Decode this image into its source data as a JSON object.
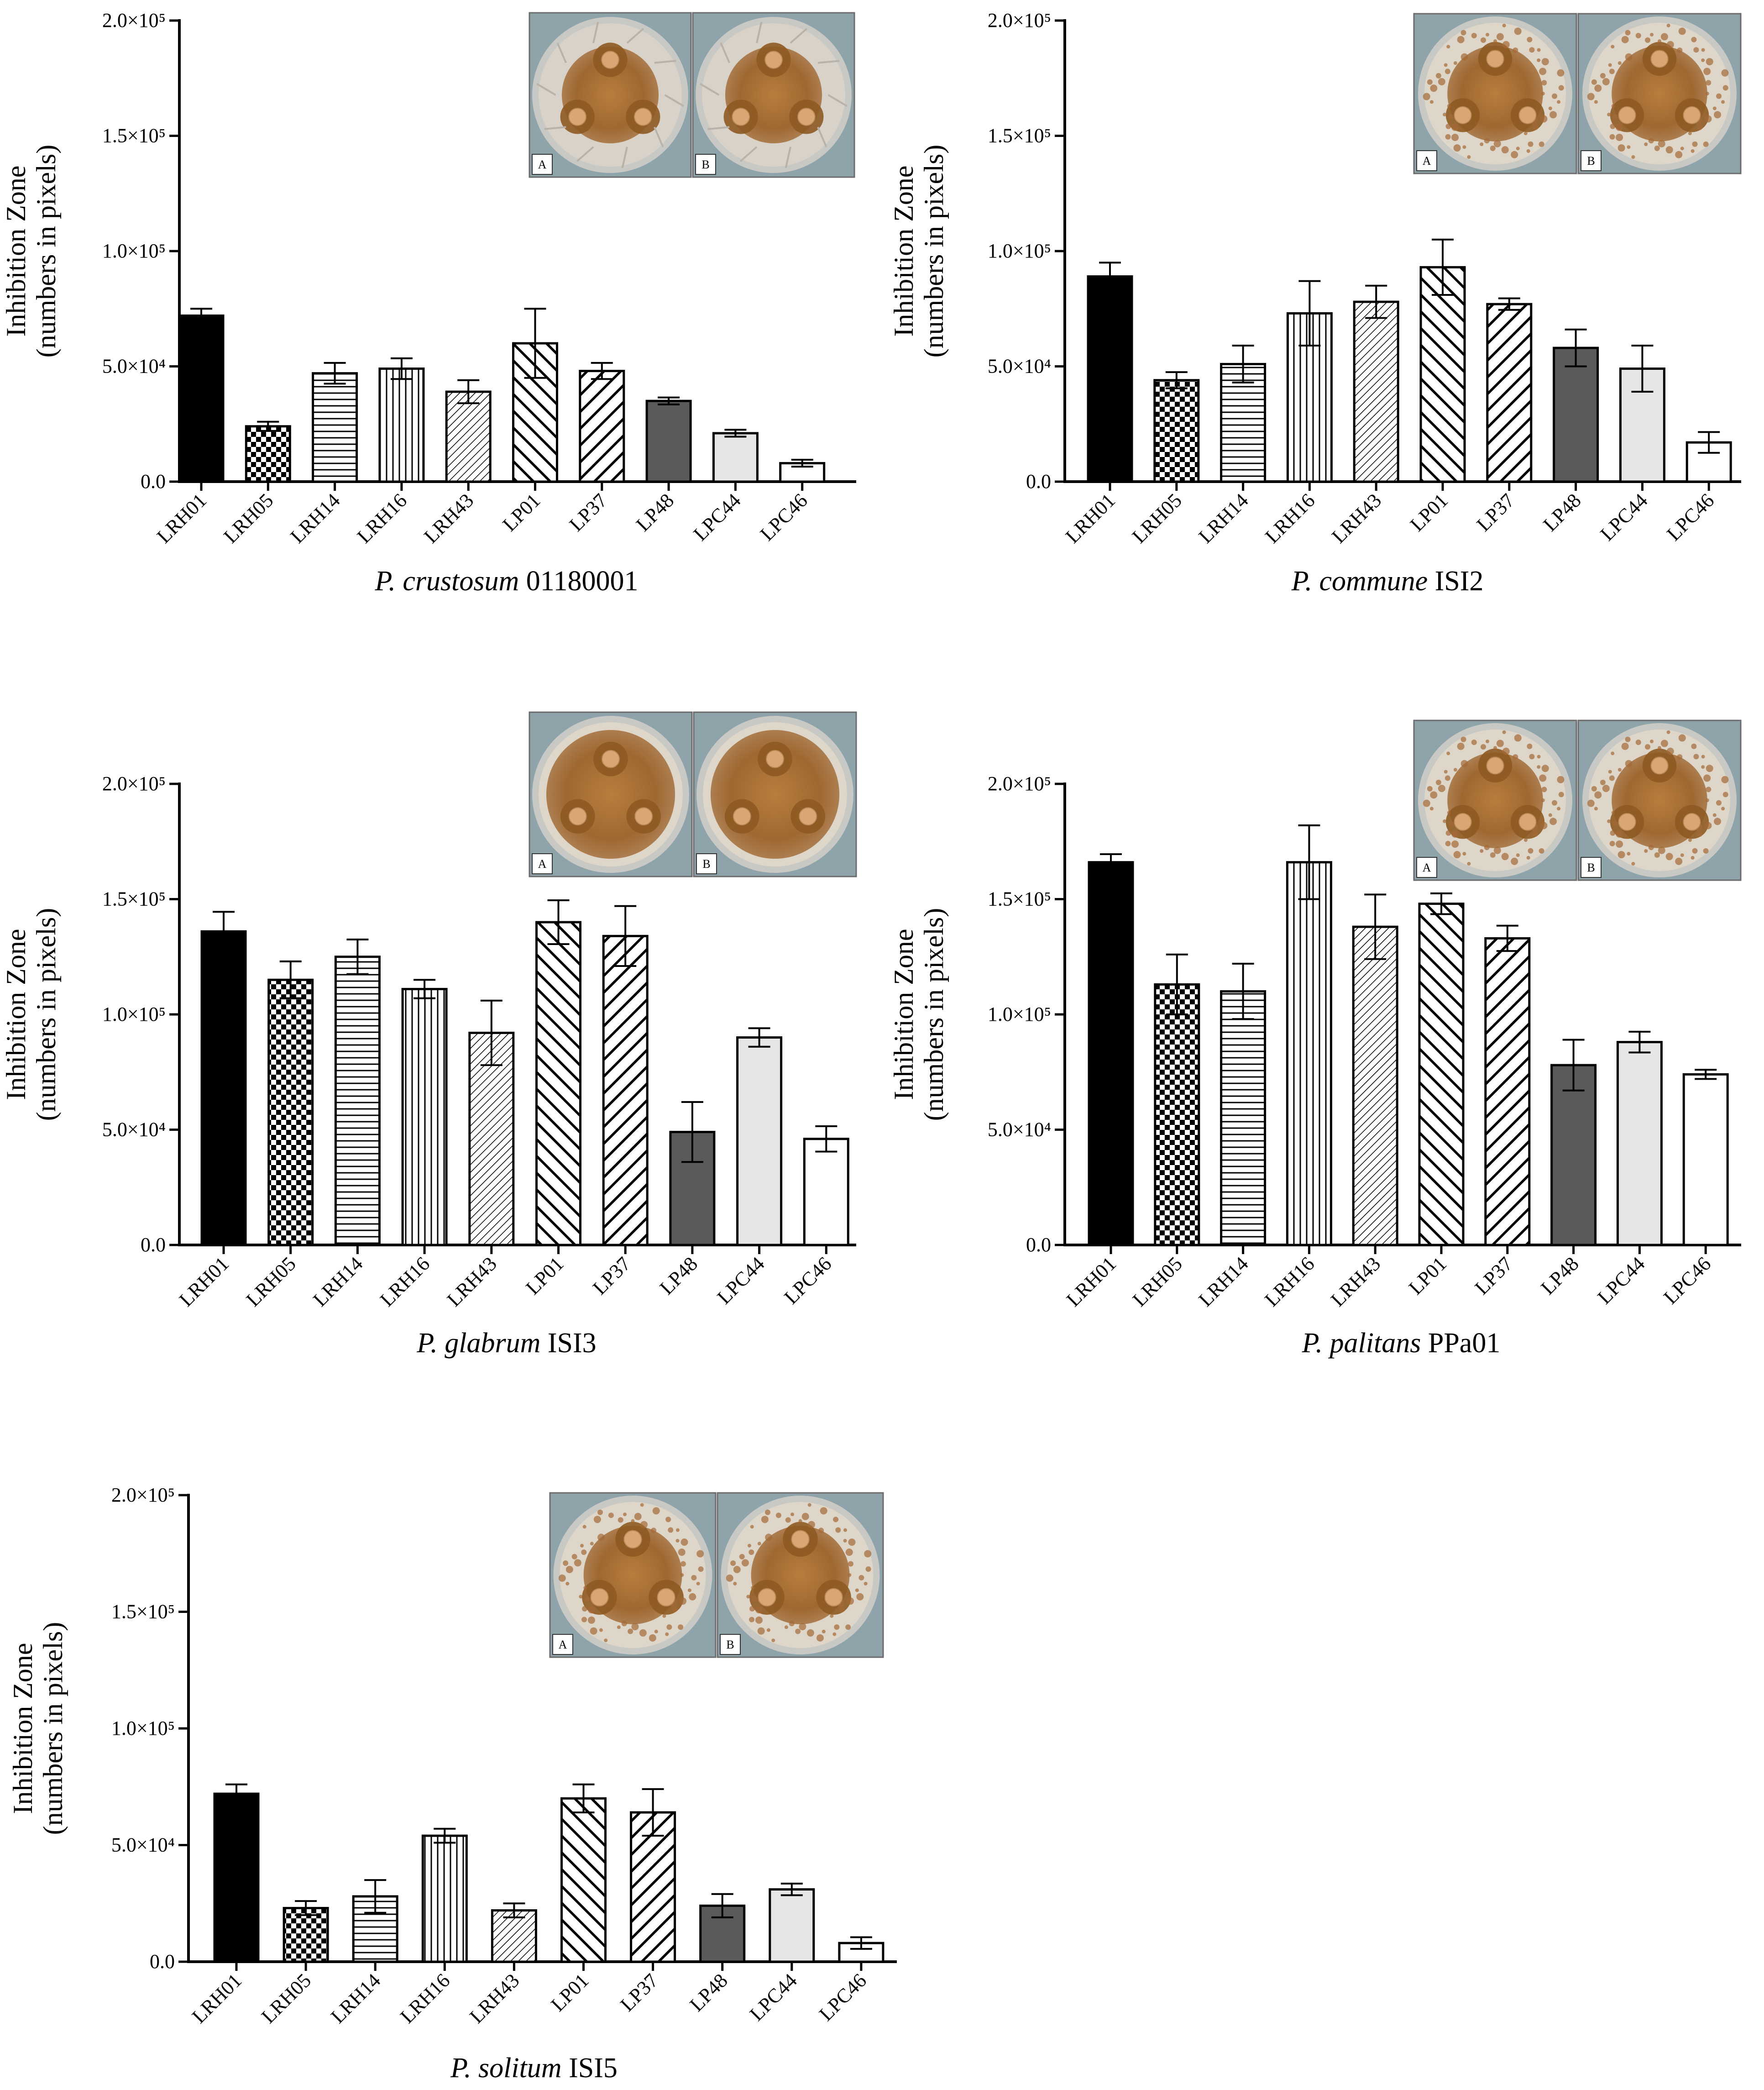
{
  "figure": {
    "background": "#ffffff"
  },
  "styles": {
    "LRH01": {
      "pattern": "solid",
      "color": "#000000"
    },
    "LRH05": {
      "pattern": "checker",
      "color": "#000000"
    },
    "LRH14": {
      "pattern": "hlines",
      "color": "#000000"
    },
    "LRH16": {
      "pattern": "vlines",
      "color": "#000000"
    },
    "LRH43": {
      "pattern": "diag-fine",
      "color": "#000000"
    },
    "LP01": {
      "pattern": "diag-back",
      "color": "#000000"
    },
    "LP37": {
      "pattern": "diag-fwd",
      "color": "#000000"
    },
    "LP48": {
      "pattern": "solid",
      "color": "#5a5a5a"
    },
    "LPC44": {
      "pattern": "solid",
      "color": "#e6e6e6"
    },
    "LPC46": {
      "pattern": "solid",
      "color": "#ffffff"
    }
  },
  "photo_colors": {
    "plate": "#a86a2c",
    "rim": "#c8c8c4",
    "background": "#8fa3ab",
    "disc": "#d9a774"
  },
  "chart_data": [
    {
      "type": "bar",
      "title": "",
      "subtitle_italic": "P. crustosum",
      "subtitle_rest": " 01180001",
      "ylabel_line1": "Inhibition Zone",
      "ylabel_line2": "(numbers in pixels)",
      "ylim": [
        0,
        200000
      ],
      "yticks": [
        {
          "label": "0.0",
          "value": 0
        },
        {
          "label": "5.0×10⁴",
          "value": 50000
        },
        {
          "label": "1.0×10⁵",
          "value": 100000
        },
        {
          "label": "1.5×10⁵",
          "value": 150000
        },
        {
          "label": "2.0×10⁵",
          "value": 200000
        }
      ],
      "categories": [
        "LRH01",
        "LRH05",
        "LRH14",
        "LRH16",
        "LRH43",
        "LP01",
        "LP37",
        "LP48",
        "LPC44",
        "LPC46"
      ],
      "values": [
        72000,
        24000,
        47000,
        49000,
        39000,
        60000,
        48000,
        35000,
        21000,
        8000
      ],
      "errors": [
        3000,
        2000,
        4500,
        4500,
        5000,
        15000,
        3500,
        1500,
        1500,
        1500
      ],
      "photos": [
        {
          "label": "A",
          "variant": "wavy"
        },
        {
          "label": "B",
          "variant": "wavy"
        }
      ]
    },
    {
      "type": "bar",
      "title": "",
      "subtitle_italic": "P. commune",
      "subtitle_rest": " ISI2",
      "ylabel_line1": "Inhibition Zone",
      "ylabel_line2": "(numbers in pixels)",
      "ylim": [
        0,
        200000
      ],
      "yticks": [
        {
          "label": "0.0",
          "value": 0
        },
        {
          "label": "5.0×10⁴",
          "value": 50000
        },
        {
          "label": "1.0×10⁵",
          "value": 100000
        },
        {
          "label": "1.5×10⁵",
          "value": 150000
        },
        {
          "label": "2.0×10⁵",
          "value": 200000
        }
      ],
      "categories": [
        "LRH01",
        "LRH05",
        "LRH14",
        "LRH16",
        "LRH43",
        "LP01",
        "LP37",
        "LP48",
        "LPC44",
        "LPC46"
      ],
      "values": [
        89000,
        44000,
        51000,
        73000,
        78000,
        93000,
        77000,
        58000,
        49000,
        17000
      ],
      "errors": [
        6000,
        3500,
        8000,
        14000,
        7000,
        12000,
        2500,
        8000,
        10000,
        4500
      ],
      "photos": [
        {
          "label": "A",
          "variant": "spotted"
        },
        {
          "label": "B",
          "variant": "spotted"
        }
      ]
    },
    {
      "type": "bar",
      "title": "",
      "subtitle_italic": "P. glabrum",
      "subtitle_rest": " ISI3",
      "ylabel_line1": "Inhibition Zone",
      "ylabel_line2": "(numbers in pixels)",
      "ylim": [
        0,
        200000
      ],
      "yticks": [
        {
          "label": "0.0",
          "value": 0
        },
        {
          "label": "5.0×10⁴",
          "value": 50000
        },
        {
          "label": "1.0×10⁵",
          "value": 100000
        },
        {
          "label": "1.5×10⁵",
          "value": 150000
        },
        {
          "label": "2.0×10⁵",
          "value": 200000
        }
      ],
      "categories": [
        "LRH01",
        "LRH05",
        "LRH14",
        "LRH16",
        "LRH43",
        "LP01",
        "LP37",
        "LP48",
        "LPC44",
        "LPC46"
      ],
      "values": [
        136000,
        115000,
        125000,
        111000,
        92000,
        140000,
        134000,
        49000,
        90000,
        46000
      ],
      "errors": [
        8500,
        8000,
        7500,
        4000,
        14000,
        9500,
        13000,
        13000,
        4000,
        5500
      ],
      "photos": [
        {
          "label": "A",
          "variant": "smooth"
        },
        {
          "label": "B",
          "variant": "smooth"
        }
      ]
    },
    {
      "type": "bar",
      "title": "",
      "subtitle_italic": "P. palitans",
      "subtitle_rest": " PPa01",
      "ylabel_line1": "Inhibition Zone",
      "ylabel_line2": "(numbers in pixels)",
      "ylim": [
        0,
        200000
      ],
      "yticks": [
        {
          "label": "0.0",
          "value": 0
        },
        {
          "label": "5.0×10⁴",
          "value": 50000
        },
        {
          "label": "1.0×10⁵",
          "value": 100000
        },
        {
          "label": "1.5×10⁵",
          "value": 150000
        },
        {
          "label": "2.0×10⁵",
          "value": 200000
        }
      ],
      "categories": [
        "LRH01",
        "LRH05",
        "LRH14",
        "LRH16",
        "LRH43",
        "LP01",
        "LP37",
        "LP48",
        "LPC44",
        "LPC46"
      ],
      "values": [
        166000,
        113000,
        110000,
        166000,
        138000,
        148000,
        133000,
        78000,
        88000,
        74000
      ],
      "errors": [
        3500,
        13000,
        12000,
        16000,
        14000,
        4500,
        5500,
        11000,
        4500,
        2000
      ],
      "photos": [
        {
          "label": "A",
          "variant": "spotted"
        },
        {
          "label": "B",
          "variant": "spotted"
        }
      ]
    },
    {
      "type": "bar",
      "title": "",
      "subtitle_italic": "P. solitum",
      "subtitle_rest": " ISI5",
      "ylabel_line1": "Inhibition Zone",
      "ylabel_line2": "(numbers in pixels)",
      "ylim": [
        0,
        200000
      ],
      "yticks": [
        {
          "label": "0.0",
          "value": 0
        },
        {
          "label": "5.0×10⁴",
          "value": 50000
        },
        {
          "label": "1.0×10⁵",
          "value": 100000
        },
        {
          "label": "1.5×10⁵",
          "value": 150000
        },
        {
          "label": "2.0×10⁵",
          "value": 200000
        }
      ],
      "categories": [
        "LRH01",
        "LRH05",
        "LRH14",
        "LRH16",
        "LRH43",
        "LP01",
        "LP37",
        "LP48",
        "LPC44",
        "LPC46"
      ],
      "values": [
        72000,
        23000,
        28000,
        54000,
        22000,
        70000,
        64000,
        24000,
        31000,
        8000
      ],
      "errors": [
        4000,
        3000,
        7000,
        3000,
        3000,
        6000,
        10000,
        5000,
        2500,
        2500
      ],
      "photos": [
        {
          "label": "A",
          "variant": "speckled"
        },
        {
          "label": "B",
          "variant": "speckled"
        }
      ]
    }
  ]
}
